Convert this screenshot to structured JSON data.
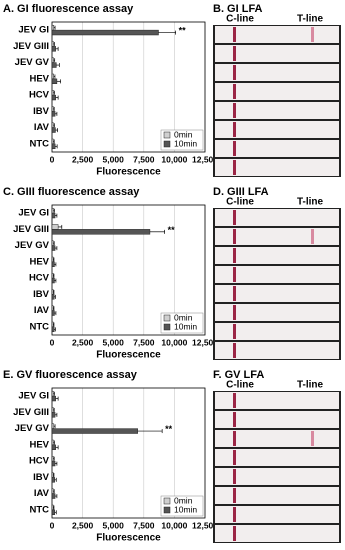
{
  "chart_data": [
    {
      "type": "bar",
      "orientation": "horizontal",
      "title": "A. GI fluorescence assay",
      "xlabel": "Fluorescence",
      "categories": [
        "JEV GI",
        "JEV GIII",
        "JEV GV",
        "HEV",
        "HCV",
        "IBV",
        "IAV",
        "NTC"
      ],
      "series": [
        {
          "name": "0min",
          "color": "#d0d0d0",
          "values": [
            150,
            120,
            130,
            140,
            120,
            110,
            120,
            110
          ],
          "errors": [
            100,
            80,
            90,
            100,
            80,
            70,
            80,
            70
          ]
        },
        {
          "name": "10min",
          "color": "#555555",
          "values": [
            8700,
            300,
            350,
            400,
            300,
            250,
            280,
            260
          ],
          "errors": [
            1400,
            200,
            250,
            300,
            200,
            150,
            180,
            160
          ]
        }
      ],
      "annotations": [
        {
          "text": "**",
          "category": "JEV GI"
        }
      ],
      "xlim": [
        0,
        12500
      ],
      "xticks": [
        0,
        {
          "value": 2500,
          "label": "2,500"
        },
        {
          "value": 5000,
          "label": "5,000"
        },
        {
          "value": 7500,
          "label": "7,500"
        },
        {
          "value": 10000,
          "label": "10,000"
        },
        {
          "value": 12500,
          "label": "12,500"
        }
      ],
      "grid": true,
      "legend": "bottom-right"
    },
    {
      "type": "bar",
      "orientation": "horizontal",
      "title": "C. GIII fluorescence assay",
      "xlabel": "Fluorescence",
      "categories": [
        "JEV GI",
        "JEV GIII",
        "JEV GV",
        "HEV",
        "HCV",
        "IBV",
        "IAV",
        "NTC"
      ],
      "series": [
        {
          "name": "0min",
          "color": "#d0d0d0",
          "values": [
            120,
            500,
            110,
            100,
            100,
            100,
            100,
            100
          ],
          "errors": [
            80,
            300,
            70,
            60,
            60,
            60,
            60,
            60
          ]
        },
        {
          "name": "10min",
          "color": "#555555",
          "values": [
            250,
            8000,
            250,
            200,
            200,
            180,
            200,
            180
          ],
          "errors": [
            150,
            1200,
            150,
            120,
            120,
            100,
            120,
            100
          ]
        }
      ],
      "annotations": [
        {
          "text": "**",
          "category": "JEV GIII"
        }
      ],
      "xlim": [
        0,
        12500
      ],
      "xticks": [
        0,
        {
          "value": 2500,
          "label": "2,500"
        },
        {
          "value": 5000,
          "label": "5,000"
        },
        {
          "value": 7500,
          "label": "7,500"
        },
        {
          "value": 10000,
          "label": "10,000"
        },
        {
          "value": 12500,
          "label": "12,500"
        }
      ],
      "grid": true,
      "legend": "bottom-right"
    },
    {
      "type": "bar",
      "orientation": "horizontal",
      "title": "E. GV fluorescence assay",
      "xlabel": "Fluorescence",
      "categories": [
        "JEV GI",
        "JEV GIII",
        "JEV GV",
        "HEV",
        "HCV",
        "IBV",
        "IAV",
        "NTC"
      ],
      "series": [
        {
          "name": "0min",
          "color": "#d0d0d0",
          "values": [
            120,
            110,
            150,
            120,
            110,
            100,
            110,
            100
          ],
          "errors": [
            80,
            70,
            100,
            80,
            70,
            60,
            70,
            60
          ]
        },
        {
          "name": "10min",
          "color": "#555555",
          "values": [
            300,
            250,
            7000,
            300,
            250,
            220,
            250,
            220
          ],
          "errors": [
            200,
            150,
            2000,
            200,
            150,
            130,
            150,
            130
          ]
        }
      ],
      "annotations": [
        {
          "text": "**",
          "category": "JEV GV"
        }
      ],
      "xlim": [
        0,
        12500
      ],
      "xticks": [
        0,
        {
          "value": 2500,
          "label": "2,500"
        },
        {
          "value": 5000,
          "label": "5,000"
        },
        {
          "value": 7500,
          "label": "7,500"
        },
        {
          "value": 10000,
          "label": "10,000"
        },
        {
          "value": 12500,
          "label": "12,500"
        }
      ],
      "grid": true,
      "legend": "bottom-right"
    }
  ],
  "lfa_panels": [
    {
      "title": "B. GI LFA",
      "c_label": "C-line",
      "t_label": "T-line"
    },
    {
      "title": "D. GIII LFA",
      "c_label": "C-line",
      "t_label": "T-line"
    },
    {
      "title": "F. GV LFA",
      "c_label": "C-line",
      "t_label": "T-line"
    }
  ]
}
